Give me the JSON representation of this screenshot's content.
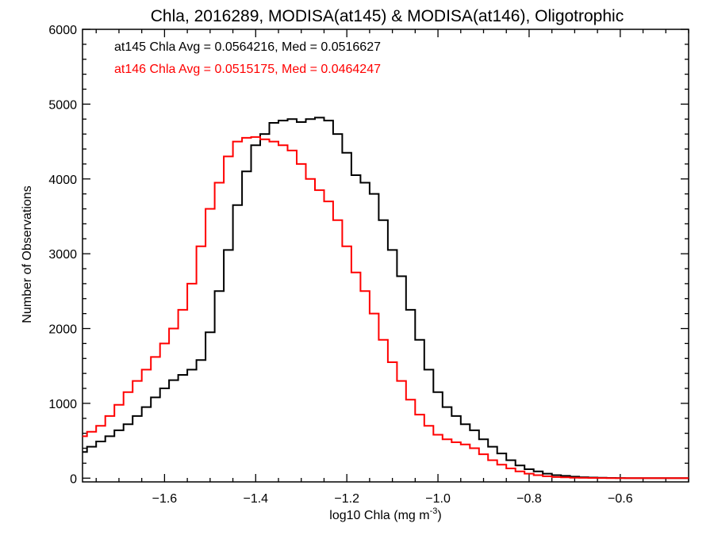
{
  "chart_data": {
    "type": "line",
    "style": "step histogram",
    "title": "Chla, 2016289, MODISA(at145) & MODISA(at146), Oligotrophic",
    "xlabel_main": "log10 Chla (mg m",
    "xlabel_sup": "-3",
    "xlabel_close": ")",
    "ylabel": "Number of Observations",
    "xlim": [
      -1.78,
      -0.45
    ],
    "ylim": [
      -50,
      6000
    ],
    "xticks": [
      -1.6,
      -1.4,
      -1.2,
      -1.0,
      -0.8,
      -0.6
    ],
    "xtick_labels": [
      "−1.6",
      "−1.4",
      "−1.2",
      "−1.0",
      "−0.8",
      "−0.6"
    ],
    "yticks": [
      0,
      1000,
      2000,
      3000,
      4000,
      5000,
      6000
    ],
    "ytick_labels": [
      "0",
      "1000",
      "2000",
      "3000",
      "4000",
      "5000",
      "6000"
    ],
    "grid": false,
    "annotations": [
      {
        "text": "at145 Chla Avg = 0.0564216, Med = 0.0516627",
        "color": "#000000"
      },
      {
        "text": "at146 Chla Avg = 0.0515175, Med = 0.0464247",
        "color": "#ff0000"
      }
    ],
    "series": [
      {
        "color": "#000000",
        "x": [
          -1.78,
          -1.76,
          -1.74,
          -1.72,
          -1.7,
          -1.68,
          -1.66,
          -1.64,
          -1.62,
          -1.6,
          -1.58,
          -1.56,
          -1.54,
          -1.52,
          -1.5,
          -1.48,
          -1.46,
          -1.44,
          -1.42,
          -1.4,
          -1.38,
          -1.36,
          -1.34,
          -1.32,
          -1.3,
          -1.28,
          -1.26,
          -1.24,
          -1.22,
          -1.2,
          -1.18,
          -1.16,
          -1.14,
          -1.12,
          -1.1,
          -1.08,
          -1.06,
          -1.04,
          -1.02,
          -1.0,
          -0.98,
          -0.96,
          -0.94,
          -0.92,
          -0.9,
          -0.88,
          -0.86,
          -0.84,
          -0.82,
          -0.8,
          -0.78,
          -0.76,
          -0.74,
          -0.72,
          -0.7,
          -0.68,
          -0.66,
          -0.64,
          -0.62,
          -0.6,
          -0.58,
          -0.56,
          -0.54,
          -0.52,
          -0.5,
          -0.48,
          -0.46
        ],
        "values": [
          350,
          420,
          490,
          560,
          640,
          720,
          830,
          950,
          1080,
          1200,
          1310,
          1380,
          1450,
          1580,
          1950,
          2500,
          3050,
          3650,
          4100,
          4450,
          4600,
          4750,
          4780,
          4800,
          4760,
          4800,
          4820,
          4780,
          4600,
          4350,
          4050,
          3950,
          3800,
          3450,
          3050,
          2700,
          2250,
          1850,
          1450,
          1150,
          950,
          830,
          720,
          640,
          520,
          420,
          330,
          240,
          170,
          120,
          90,
          60,
          40,
          30,
          20,
          12,
          8,
          5,
          3,
          2,
          1,
          0,
          0,
          0,
          0,
          0,
          0
        ]
      },
      {
        "color": "#ff0000",
        "x": [
          -1.78,
          -1.76,
          -1.74,
          -1.72,
          -1.7,
          -1.68,
          -1.66,
          -1.64,
          -1.62,
          -1.6,
          -1.58,
          -1.56,
          -1.54,
          -1.52,
          -1.5,
          -1.48,
          -1.46,
          -1.44,
          -1.42,
          -1.4,
          -1.38,
          -1.36,
          -1.34,
          -1.32,
          -1.3,
          -1.28,
          -1.26,
          -1.24,
          -1.22,
          -1.2,
          -1.18,
          -1.16,
          -1.14,
          -1.12,
          -1.1,
          -1.08,
          -1.06,
          -1.04,
          -1.02,
          -1.0,
          -0.98,
          -0.96,
          -0.94,
          -0.92,
          -0.9,
          -0.88,
          -0.86,
          -0.84,
          -0.82,
          -0.8,
          -0.78,
          -0.76,
          -0.74,
          -0.72,
          -0.7,
          -0.68,
          -0.66,
          -0.64,
          -0.62,
          -0.6,
          -0.58,
          -0.56,
          -0.54,
          -0.52,
          -0.5,
          -0.48,
          -0.46
        ],
        "values": [
          560,
          620,
          700,
          830,
          980,
          1150,
          1300,
          1450,
          1620,
          1800,
          2000,
          2250,
          2600,
          3100,
          3600,
          3950,
          4300,
          4500,
          4550,
          4560,
          4530,
          4500,
          4450,
          4380,
          4200,
          4000,
          3850,
          3700,
          3450,
          3100,
          2750,
          2500,
          2200,
          1850,
          1550,
          1300,
          1050,
          850,
          700,
          580,
          520,
          480,
          450,
          400,
          320,
          240,
          180,
          130,
          90,
          60,
          40,
          25,
          15,
          10,
          6,
          4,
          3,
          2,
          1,
          1,
          0,
          0,
          0,
          0,
          0,
          0,
          0
        ]
      }
    ]
  }
}
